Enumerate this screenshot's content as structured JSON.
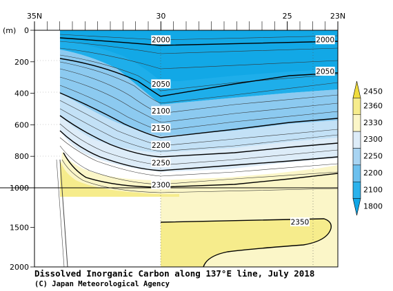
{
  "chart_data": {
    "type": "contour",
    "title": "Dissolved Inorganic Carbon along 137°E line, July 2018",
    "credit": "(C) Japan Meteorological Agency",
    "x_axis": {
      "tick_labels": [
        "35N",
        "30",
        "25",
        "23N"
      ],
      "tick_values": [
        35,
        30,
        25,
        23
      ],
      "range": [
        35,
        23
      ]
    },
    "y_axis": {
      "unit_label": "(m)",
      "tick_labels": [
        "0",
        "200",
        "400",
        "600",
        "800",
        "1000",
        "1500",
        "2000"
      ],
      "tick_values": [
        0,
        200,
        400,
        600,
        800,
        1000,
        1500,
        2000
      ],
      "range": [
        0,
        2000
      ],
      "scale_break_at": 1000
    },
    "colorbar": {
      "labels": [
        "2450",
        "2360",
        "2330",
        "2300",
        "2250",
        "2200",
        "2100",
        "1800"
      ],
      "colors": [
        "#f0dc3c",
        "#f6ec8c",
        "#fbf6c8",
        "#ddecf8",
        "#a8d4f2",
        "#6cc0ee",
        "#2ab2ec",
        "#10a6e6"
      ]
    },
    "contour_labels": [
      {
        "value": "2000",
        "lat": 30,
        "depth": 60
      },
      {
        "value": "2000",
        "lat": 23.5,
        "depth": 60
      },
      {
        "value": "2050",
        "lat": 30,
        "depth": 340
      },
      {
        "value": "2050",
        "lat": 23.5,
        "depth": 260
      },
      {
        "value": "2100",
        "lat": 30,
        "depth": 510
      },
      {
        "value": "2150",
        "lat": 30,
        "depth": 620
      },
      {
        "value": "2200",
        "lat": 30,
        "depth": 730
      },
      {
        "value": "2250",
        "lat": 30,
        "depth": 840
      },
      {
        "value": "2300",
        "lat": 30,
        "depth": 980
      },
      {
        "value": "2350",
        "lat": 24.5,
        "depth": 1430
      }
    ]
  }
}
